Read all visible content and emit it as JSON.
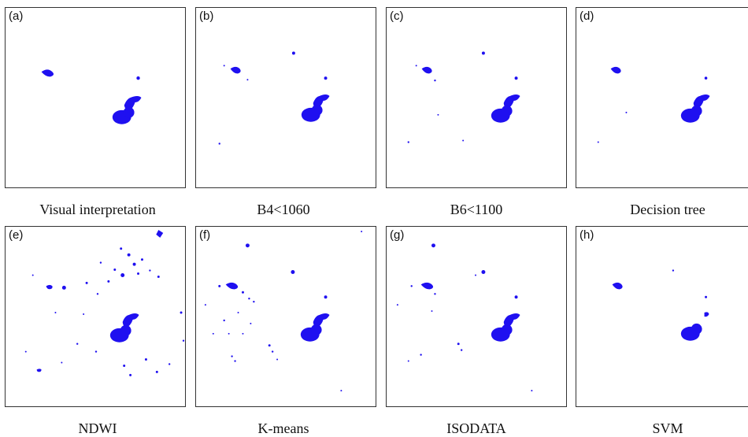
{
  "panels": [
    {
      "tag": "(a)",
      "caption": "Visual interpretation"
    },
    {
      "tag": "(b)",
      "caption": "B4<1060"
    },
    {
      "tag": "(c)",
      "caption": "B6<1100"
    },
    {
      "tag": "(d)",
      "caption": "Decision tree"
    },
    {
      "tag": "(e)",
      "caption": "NDWI"
    },
    {
      "tag": "(f)",
      "caption": "K-means"
    },
    {
      "tag": "(g)",
      "caption": "ISODATA"
    },
    {
      "tag": "(h)",
      "caption": "SVM"
    }
  ],
  "colors": {
    "water": "#1f10f0",
    "border": "#333333"
  }
}
